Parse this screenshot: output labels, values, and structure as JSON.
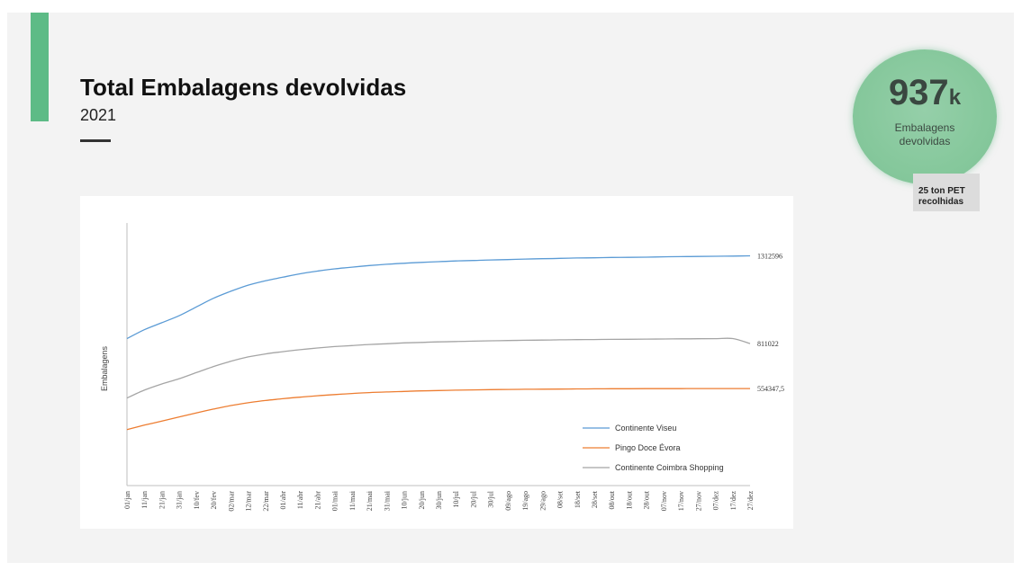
{
  "header": {
    "title": "Total Embalagens devolvidas",
    "subtitle": "2021"
  },
  "kpi": {
    "value": "937",
    "unit": "k",
    "label_line1": "Embalagens",
    "label_line2": "devolvidas",
    "note_line1": "25 ton PET",
    "note_line2": "recolhidas"
  },
  "colors": {
    "accent": "#5dbb86",
    "kpi_circle": "#8bcaa0",
    "viseu": "#5b9bd5",
    "evora": "#ed7d31",
    "coimbra": "#a5a5a5"
  },
  "chart_data": {
    "type": "line",
    "title": "",
    "xlabel": "",
    "ylabel": "Embalagens",
    "ylim": [
      0,
      1500000
    ],
    "grid": false,
    "legend_position": "bottom-right",
    "categories": [
      "01/jan",
      "11/jan",
      "21/jan",
      "31/jan",
      "10/fev",
      "20/fev",
      "02/mar",
      "12/mar",
      "22/mar",
      "01/abr",
      "11/abr",
      "21/abr",
      "01/mai",
      "11/mai",
      "21/mai",
      "31/mai",
      "10/jun",
      "20/jun",
      "30/jun",
      "10/jul",
      "20/jul",
      "30/jul",
      "09/ago",
      "19/ago",
      "29/ago",
      "08/set",
      "18/set",
      "28/set",
      "08/out",
      "18/out",
      "28/out",
      "07/nov",
      "17/nov",
      "27/nov",
      "07/dez",
      "17/dez",
      "27/dez"
    ],
    "series": [
      {
        "name": "Continente Viseu",
        "color": "#5b9bd5",
        "values": [
          840000,
          890000,
          930000,
          970000,
          1020000,
          1070000,
          1110000,
          1145000,
          1170000,
          1190000,
          1210000,
          1225000,
          1238000,
          1248000,
          1257000,
          1264000,
          1270000,
          1275000,
          1279000,
          1283000,
          1286000,
          1289000,
          1291000,
          1294000,
          1296000,
          1298000,
          1300000,
          1301000,
          1303000,
          1304000,
          1305000,
          1307000,
          1308000,
          1309000,
          1310000,
          1311000,
          1312596
        ],
        "end_label": "1312596"
      },
      {
        "name": "Pingo Doce Évora",
        "color": "#ed7d31",
        "values": [
          320000,
          345000,
          368000,
          392000,
          415000,
          437000,
          457000,
          473000,
          486000,
          496000,
          505000,
          513000,
          520000,
          526000,
          531000,
          535000,
          538000,
          541000,
          543000,
          545000,
          546500,
          548000,
          549000,
          550000,
          550800,
          551400,
          552000,
          552500,
          553000,
          553300,
          553600,
          553800,
          554000,
          554100,
          554200,
          554300,
          554347.5
        ],
        "end_label": "554347,5"
      },
      {
        "name": "Continente Coimbra Shopping",
        "color": "#a5a5a5",
        "values": [
          500000,
          545000,
          580000,
          610000,
          645000,
          680000,
          710000,
          735000,
          752000,
          765000,
          776000,
          786000,
          794000,
          800000,
          806000,
          810000,
          815000,
          818000,
          821000,
          823000,
          825000,
          827000,
          828500,
          830000,
          831000,
          832500,
          833500,
          834500,
          835500,
          836000,
          836800,
          837500,
          838200,
          838800,
          839400,
          840000,
          811022
        ],
        "end_label": "811022"
      }
    ]
  }
}
